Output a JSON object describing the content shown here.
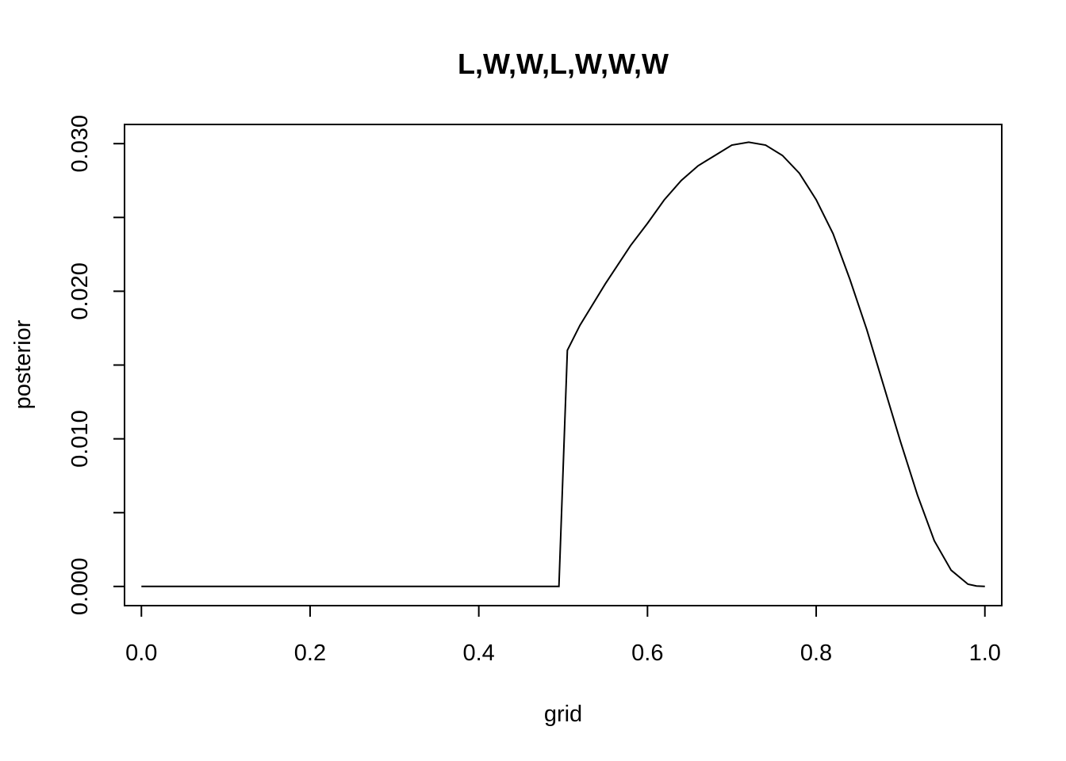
{
  "chart_data": {
    "type": "line",
    "title": "L,W,W,L,W,W,W",
    "xlabel": "grid",
    "ylabel": "posterior",
    "xlim": [
      -0.02,
      1.02
    ],
    "ylim": [
      -0.0013,
      0.0313
    ],
    "x_ticks": [
      0.0,
      0.2,
      0.4,
      0.6,
      0.8,
      1.0
    ],
    "x_tick_labels": [
      "0.0",
      "0.2",
      "0.4",
      "0.6",
      "0.8",
      "1.0"
    ],
    "y_ticks": [
      0.0,
      0.005,
      0.01,
      0.015,
      0.02,
      0.025,
      0.03
    ],
    "y_tick_labels": [
      "0.000",
      "",
      "0.010",
      "",
      "0.020",
      "",
      "0.030"
    ],
    "grid": false,
    "series": [
      {
        "x": [
          0.0,
          0.1,
          0.2,
          0.3,
          0.4,
          0.495,
          0.505,
          0.52,
          0.55,
          0.58,
          0.6,
          0.62,
          0.64,
          0.66,
          0.68,
          0.7,
          0.72,
          0.74,
          0.76,
          0.78,
          0.8,
          0.82,
          0.84,
          0.86,
          0.88,
          0.9,
          0.92,
          0.94,
          0.96,
          0.98,
          0.99,
          1.0
        ],
        "y": [
          0.0,
          0.0,
          0.0,
          0.0,
          0.0,
          0.0,
          0.016,
          0.0177,
          0.0205,
          0.0231,
          0.0246,
          0.0262,
          0.0275,
          0.0285,
          0.0292,
          0.0299,
          0.0301,
          0.0299,
          0.0292,
          0.028,
          0.0262,
          0.0239,
          0.0208,
          0.0174,
          0.0136,
          0.0098,
          0.0062,
          0.0031,
          0.0011,
          0.00015,
          3e-05,
          0.0
        ]
      }
    ]
  }
}
